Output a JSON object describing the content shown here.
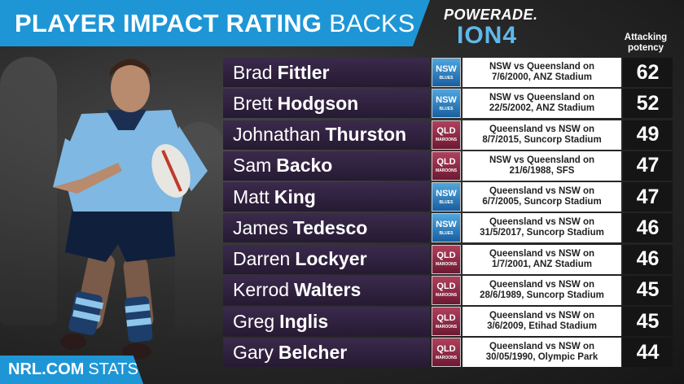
{
  "header": {
    "title_bold": "PLAYER IMPACT RATING",
    "title_light": "BACKS"
  },
  "sponsor": {
    "line1": "POWERADE.",
    "line2": "ION4"
  },
  "column_header": {
    "line1": "Attacking",
    "line2": "potency"
  },
  "rows": [
    {
      "first": "Brad",
      "last": "Fittler",
      "team": "NSW",
      "team_sub": "BLUES",
      "match_line1": "NSW vs Queensland on",
      "match_line2": "7/6/2000, ANZ Stadium",
      "score": "62"
    },
    {
      "first": "Brett",
      "last": "Hodgson",
      "team": "NSW",
      "team_sub": "BLUES",
      "match_line1": "NSW vs Queensland on",
      "match_line2": "22/5/2002, ANZ Stadium",
      "score": "52"
    },
    {
      "first": "Johnathan",
      "last": "Thurston",
      "team": "QLD",
      "team_sub": "MAROONS",
      "match_line1": "Queensland vs NSW on",
      "match_line2": "8/7/2015, Suncorp Stadium",
      "score": "49"
    },
    {
      "first": "Sam",
      "last": "Backo",
      "team": "QLD",
      "team_sub": "MAROONS",
      "match_line1": "NSW vs Queensland on",
      "match_line2": "21/6/1988, SFS",
      "score": "47"
    },
    {
      "first": "Matt",
      "last": "King",
      "team": "NSW",
      "team_sub": "BLUES",
      "match_line1": "Queensland vs NSW on",
      "match_line2": "6/7/2005, Suncorp Stadium",
      "score": "47"
    },
    {
      "first": "James",
      "last": "Tedesco",
      "team": "NSW",
      "team_sub": "BLUES",
      "match_line1": "Queensland vs NSW on",
      "match_line2": "31/5/2017, Suncorp Stadium",
      "score": "46"
    },
    {
      "first": "Darren",
      "last": "Lockyer",
      "team": "QLD",
      "team_sub": "MAROONS",
      "match_line1": "Queensland vs NSW on",
      "match_line2": "1/7/2001, ANZ Stadium",
      "score": "46"
    },
    {
      "first": "Kerrod",
      "last": "Walters",
      "team": "QLD",
      "team_sub": "MAROONS",
      "match_line1": "Queensland vs NSW on",
      "match_line2": "28/6/1989, Suncorp Stadium",
      "score": "45"
    },
    {
      "first": "Greg",
      "last": "Inglis",
      "team": "QLD",
      "team_sub": "MAROONS",
      "match_line1": "Queensland vs NSW on",
      "match_line2": "3/6/2009, Etihad Stadium",
      "score": "45"
    },
    {
      "first": "Gary",
      "last": "Belcher",
      "team": "QLD",
      "team_sub": "MAROONS",
      "match_line1": "Queensland vs NSW on",
      "match_line2": "30/05/1990, Olympic Park",
      "score": "44"
    }
  ],
  "footer": {
    "bold": "NRL.COM",
    "light": "STATS"
  },
  "colors": {
    "brand_blue": "#1e96d6",
    "nsw_blue": "#1a5fa0",
    "qld_maroon": "#6d1934",
    "row_purple": "#3b2a4c"
  },
  "icons": {
    "nsw": "nsw-blues-logo-icon",
    "qld": "qld-maroons-logo-icon"
  }
}
